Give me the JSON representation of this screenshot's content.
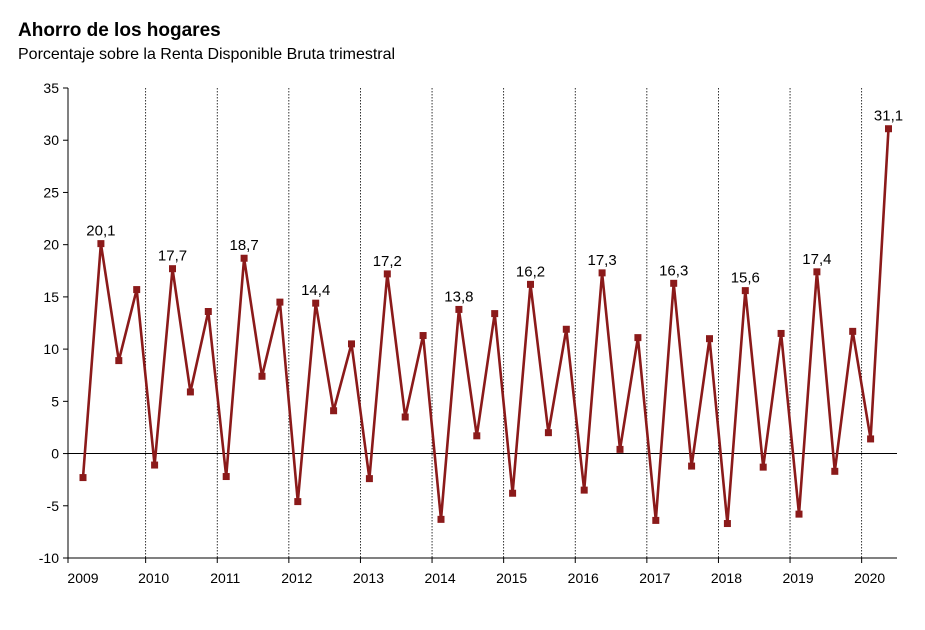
{
  "chart_data": {
    "type": "line",
    "title": "Ahorro de los hogares",
    "subtitle": "Porcentaje sobre la Renta Disponible Bruta trimestral",
    "xlabel": "",
    "ylabel": "",
    "ylim": [
      -10,
      35
    ],
    "yticks": [
      "-10",
      "-5",
      "0",
      "5",
      "10",
      "15",
      "20",
      "25",
      "30",
      "35"
    ],
    "year_labels": [
      "2009",
      "2010",
      "2011",
      "2012",
      "2013",
      "2014",
      "2015",
      "2016",
      "2017",
      "2018",
      "2019",
      "2020"
    ],
    "series": [
      {
        "values": [
          -2.3,
          20.1,
          8.9,
          15.7,
          -1.1,
          17.7,
          5.9,
          13.6,
          -2.2,
          18.7,
          7.4,
          14.5,
          -4.6,
          14.4,
          4.1,
          10.5,
          -2.4,
          17.2,
          3.5,
          11.3,
          -6.3,
          13.8,
          1.7,
          13.4,
          -3.8,
          16.2,
          2.0,
          11.9,
          -3.5,
          17.3,
          0.4,
          11.1,
          -6.4,
          16.3,
          -1.2,
          11.0,
          -6.7,
          15.6,
          -1.3,
          11.5,
          -5.8,
          17.4,
          -1.7,
          11.7,
          1.4,
          31.1
        ],
        "color": "#8b1a1a"
      }
    ],
    "annotations": [
      {
        "index": 1,
        "text": "20,1"
      },
      {
        "index": 5,
        "text": "17,7"
      },
      {
        "index": 9,
        "text": "18,7"
      },
      {
        "index": 13,
        "text": "14,4"
      },
      {
        "index": 17,
        "text": "17,2"
      },
      {
        "index": 21,
        "text": "13,8"
      },
      {
        "index": 25,
        "text": "16,2"
      },
      {
        "index": 29,
        "text": "17,3"
      },
      {
        "index": 33,
        "text": "16,3"
      },
      {
        "index": 37,
        "text": "15,6"
      },
      {
        "index": 41,
        "text": "17,4"
      },
      {
        "index": 45,
        "text": "31,1"
      }
    ],
    "year_separators": true,
    "zero_line": true
  }
}
